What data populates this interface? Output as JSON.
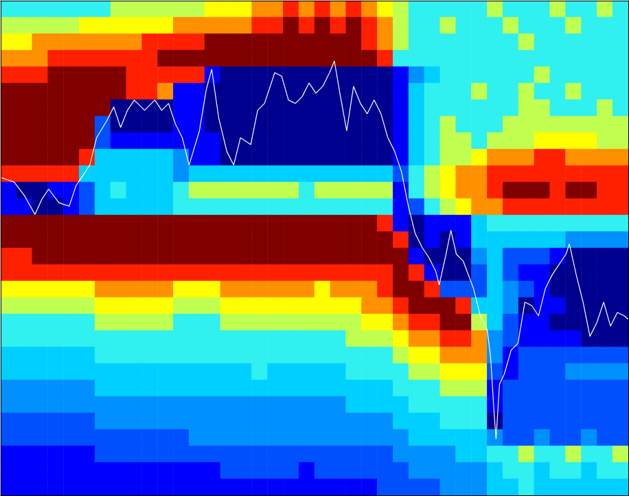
{
  "chart_data": {
    "type": "heatmap",
    "xlim": [
      0,
      916
    ],
    "ylim": [
      0,
      722
    ],
    "tick_labels": false,
    "grid": false,
    "color_range": [
      0,
      10
    ],
    "cells": [
      [
        5,
        5,
        5,
        5,
        5,
        5,
        5,
        6,
        6,
        6,
        6,
        6,
        6,
        7,
        7,
        7,
        8,
        8,
        9,
        8,
        9,
        8,
        9,
        8,
        7,
        6,
        5,
        5,
        5,
        5,
        5,
        6,
        5,
        5,
        5,
        6,
        5,
        5,
        6,
        5
      ],
      [
        6,
        6,
        6,
        6,
        6,
        7,
        7,
        7,
        7,
        7,
        7,
        8,
        8,
        8,
        8,
        8,
        9,
        9,
        10,
        9,
        10,
        9,
        10,
        9,
        8,
        6,
        5,
        5,
        6,
        5,
        5,
        5,
        6,
        5,
        5,
        5,
        6,
        5,
        5,
        5
      ],
      [
        7,
        7,
        8,
        8,
        8,
        8,
        8,
        8,
        8,
        9,
        9,
        9,
        9,
        10,
        10,
        10,
        10,
        10,
        10,
        10,
        10,
        10,
        10,
        9,
        8,
        6,
        5,
        5,
        5,
        5,
        5,
        5,
        5,
        6,
        5,
        5,
        5,
        5,
        5,
        5
      ],
      [
        8,
        8,
        8,
        9,
        9,
        9,
        9,
        9,
        9,
        9,
        10,
        10,
        10,
        10,
        10,
        10,
        10,
        10,
        10,
        10,
        10,
        10,
        10,
        10,
        9,
        5,
        5,
        5,
        5,
        5,
        5,
        5,
        5,
        5,
        5,
        5,
        5,
        5,
        5,
        5
      ],
      [
        9,
        9,
        9,
        10,
        10,
        10,
        10,
        10,
        9,
        9,
        9,
        9,
        9,
        1,
        0,
        0,
        0,
        0,
        0,
        0,
        0,
        0,
        0,
        0,
        0,
        1,
        3,
        4,
        5,
        5,
        5,
        5,
        5,
        5,
        6,
        5,
        5,
        5,
        5,
        5
      ],
      [
        10,
        10,
        10,
        10,
        10,
        10,
        10,
        10,
        9,
        9,
        8,
        1,
        1,
        0,
        0,
        0,
        0,
        0,
        0,
        0,
        0,
        0,
        0,
        0,
        0,
        1,
        4,
        5,
        5,
        5,
        6,
        5,
        5,
        6,
        5,
        5,
        6,
        5,
        5,
        5
      ],
      [
        10,
        10,
        10,
        10,
        10,
        10,
        10,
        0,
        0,
        0,
        0,
        1,
        1,
        0,
        0,
        0,
        0,
        0,
        0,
        0,
        0,
        0,
        0,
        0,
        0,
        1,
        4,
        5,
        5,
        5,
        5,
        5,
        5,
        6,
        6,
        5,
        5,
        5,
        6,
        5
      ],
      [
        10,
        10,
        10,
        10,
        10,
        10,
        2,
        0,
        0,
        0,
        0,
        1,
        1,
        0,
        0,
        0,
        0,
        0,
        0,
        0,
        0,
        0,
        0,
        0,
        0,
        1,
        4,
        5,
        6,
        5,
        5,
        5,
        6,
        6,
        6,
        6,
        6,
        6,
        6,
        6
      ],
      [
        10,
        10,
        10,
        10,
        10,
        10,
        2,
        1,
        1,
        1,
        1,
        1,
        1,
        1,
        0,
        0,
        0,
        0,
        0,
        0,
        0,
        0,
        0,
        0,
        0,
        1,
        4,
        5,
        6,
        6,
        5,
        6,
        6,
        6,
        7,
        7,
        7,
        7,
        6,
        6
      ],
      [
        10,
        10,
        10,
        10,
        10,
        9,
        4,
        4,
        4,
        4,
        4,
        3,
        1,
        1,
        0,
        0,
        0,
        0,
        0,
        0,
        0,
        0,
        0,
        0,
        0,
        1,
        4,
        5,
        6,
        6,
        7,
        8,
        8,
        8,
        9,
        9,
        8,
        8,
        8,
        8
      ],
      [
        9,
        9,
        9,
        9,
        9,
        4,
        4,
        4,
        4,
        4,
        4,
        3,
        4,
        4,
        4,
        4,
        4,
        4,
        4,
        4,
        4,
        4,
        4,
        4,
        4,
        2,
        5,
        6,
        7,
        8,
        8,
        9,
        9,
        9,
        9,
        9,
        9,
        9,
        9,
        9
      ],
      [
        1,
        0,
        0,
        1,
        1,
        2,
        4,
        5,
        4,
        4,
        4,
        5,
        6,
        6,
        6,
        6,
        6,
        6,
        6,
        5,
        6,
        6,
        6,
        6,
        6,
        1,
        5,
        6,
        7,
        8,
        8,
        9,
        10,
        10,
        10,
        9,
        10,
        10,
        9,
        9
      ],
      [
        1,
        1,
        0,
        0,
        1,
        2,
        4,
        4,
        4,
        4,
        4,
        5,
        5,
        5,
        5,
        5,
        5,
        5,
        5,
        5,
        5,
        5,
        5,
        5,
        5,
        1,
        2,
        5,
        6,
        7,
        8,
        8,
        9,
        9,
        9,
        9,
        9,
        9,
        9,
        9
      ],
      [
        10,
        10,
        10,
        10,
        10,
        10,
        10,
        10,
        10,
        10,
        10,
        10,
        10,
        10,
        10,
        10,
        10,
        10,
        10,
        10,
        10,
        10,
        10,
        10,
        9,
        1,
        0,
        1,
        1,
        1,
        4,
        5,
        5,
        5,
        5,
        5,
        5,
        5,
        5,
        5
      ],
      [
        10,
        10,
        10,
        10,
        10,
        10,
        10,
        10,
        10,
        10,
        10,
        10,
        10,
        10,
        10,
        10,
        10,
        10,
        10,
        10,
        10,
        10,
        10,
        10,
        10,
        9,
        0,
        1,
        0,
        1,
        4,
        4,
        4,
        4,
        4,
        4,
        3,
        3,
        3,
        3
      ],
      [
        9,
        9,
        10,
        10,
        10,
        10,
        10,
        10,
        10,
        10,
        10,
        10,
        10,
        10,
        10,
        10,
        10,
        10,
        10,
        10,
        10,
        10,
        10,
        10,
        10,
        10,
        1,
        0,
        0,
        0,
        3,
        4,
        2,
        2,
        2,
        1,
        0,
        0,
        0,
        0
      ],
      [
        9,
        9,
        9,
        9,
        9,
        9,
        9,
        9,
        9,
        9,
        9,
        9,
        9,
        9,
        9,
        9,
        9,
        9,
        9,
        9,
        9,
        9,
        9,
        9,
        9,
        10,
        9,
        1,
        0,
        0,
        2,
        4,
        2,
        1,
        1,
        0,
        0,
        0,
        0,
        0
      ],
      [
        7,
        7,
        7,
        7,
        7,
        7,
        8,
        8,
        8,
        8,
        8,
        7,
        7,
        7,
        8,
        8,
        8,
        8,
        8,
        8,
        7,
        8,
        8,
        8,
        9,
        10,
        10,
        9,
        2,
        2,
        2,
        4,
        3,
        2,
        1,
        0,
        0,
        0,
        0,
        0
      ],
      [
        6,
        6,
        6,
        6,
        6,
        6,
        7,
        7,
        7,
        7,
        7,
        6,
        6,
        6,
        7,
        7,
        7,
        7,
        7,
        7,
        7,
        7,
        7,
        8,
        8,
        9,
        10,
        10,
        10,
        9,
        4,
        4,
        3,
        0,
        1,
        1,
        0,
        0,
        0,
        0
      ],
      [
        5,
        5,
        5,
        5,
        5,
        5,
        6,
        6,
        6,
        6,
        6,
        5,
        5,
        5,
        6,
        6,
        6,
        6,
        6,
        6,
        6,
        6,
        6,
        7,
        7,
        8,
        9,
        9,
        10,
        10,
        6,
        4,
        2,
        1,
        1,
        0,
        0,
        0,
        0,
        0
      ],
      [
        5,
        5,
        5,
        5,
        5,
        5,
        5,
        5,
        5,
        5,
        5,
        5,
        5,
        5,
        5,
        5,
        5,
        5,
        5,
        5,
        5,
        5,
        6,
        6,
        6,
        7,
        8,
        8,
        9,
        9,
        8,
        3,
        2,
        1,
        1,
        1,
        1,
        0,
        0,
        0
      ],
      [
        4,
        4,
        4,
        4,
        4,
        4,
        5,
        5,
        5,
        5,
        5,
        5,
        5,
        5,
        5,
        5,
        5,
        5,
        5,
        5,
        5,
        5,
        5,
        5,
        5,
        6,
        7,
        7,
        8,
        8,
        8,
        3,
        1,
        2,
        2,
        2,
        2,
        2,
        2,
        2
      ],
      [
        4,
        4,
        4,
        4,
        4,
        4,
        4,
        4,
        4,
        4,
        4,
        4,
        4,
        4,
        4,
        4,
        5,
        4,
        4,
        4,
        4,
        4,
        5,
        5,
        5,
        5,
        6,
        6,
        7,
        7,
        7,
        2,
        1,
        2,
        2,
        2,
        3,
        3,
        3,
        3
      ],
      [
        3,
        3,
        3,
        3,
        3,
        3,
        4,
        4,
        4,
        4,
        4,
        4,
        4,
        4,
        4,
        4,
        4,
        4,
        4,
        4,
        4,
        4,
        4,
        4,
        4,
        5,
        5,
        5,
        6,
        6,
        6,
        1,
        2,
        2,
        2,
        2,
        2,
        2,
        2,
        2
      ],
      [
        3,
        3,
        3,
        3,
        3,
        3,
        3,
        3,
        3,
        3,
        3,
        3,
        3,
        3,
        3,
        3,
        3,
        3,
        3,
        3,
        3,
        3,
        4,
        4,
        4,
        4,
        5,
        5,
        5,
        5,
        5,
        1,
        2,
        2,
        2,
        2,
        2,
        2,
        2,
        2
      ],
      [
        2,
        2,
        2,
        2,
        2,
        2,
        3,
        3,
        3,
        3,
        3,
        3,
        3,
        3,
        3,
        3,
        3,
        3,
        3,
        3,
        3,
        3,
        3,
        3,
        3,
        4,
        4,
        4,
        5,
        5,
        5,
        0,
        2,
        2,
        2,
        2,
        2,
        2,
        2,
        2
      ],
      [
        2,
        2,
        2,
        2,
        2,
        2,
        2,
        2,
        2,
        2,
        2,
        2,
        3,
        3,
        3,
        3,
        3,
        3,
        3,
        3,
        3,
        3,
        3,
        3,
        3,
        3,
        4,
        4,
        4,
        4,
        4,
        3,
        2,
        2,
        3,
        2,
        2,
        3,
        2,
        2
      ],
      [
        1,
        1,
        1,
        1,
        1,
        1,
        2,
        2,
        2,
        2,
        2,
        2,
        2,
        2,
        2,
        2,
        2,
        2,
        2,
        2,
        2,
        2,
        2,
        2,
        2,
        3,
        3,
        3,
        3,
        4,
        4,
        5,
        5,
        6,
        5,
        5,
        6,
        5,
        5,
        6
      ],
      [
        1,
        1,
        1,
        1,
        1,
        1,
        1,
        1,
        1,
        1,
        1,
        1,
        1,
        1,
        2,
        2,
        2,
        2,
        2,
        1,
        2,
        2,
        2,
        2,
        2,
        2,
        3,
        3,
        3,
        3,
        3,
        4,
        5,
        5,
        4,
        5,
        5,
        4,
        5,
        5
      ],
      [
        1,
        1,
        1,
        1,
        1,
        1,
        1,
        1,
        1,
        1,
        1,
        1,
        1,
        1,
        1,
        1,
        1,
        1,
        1,
        1,
        1,
        1,
        1,
        1,
        2,
        2,
        2,
        2,
        3,
        3,
        3,
        4,
        4,
        5,
        4,
        4,
        4,
        4,
        4,
        4
      ]
    ],
    "series": [
      {
        "type": "line",
        "color": "#ffffff",
        "x": [
          0,
          20,
          35,
          50,
          60,
          70,
          85,
          100,
          110,
          120,
          130,
          140,
          155,
          165,
          175,
          185,
          195,
          210,
          225,
          235,
          245,
          255,
          265,
          275,
          290,
          300,
          308,
          318,
          330,
          340,
          350,
          365,
          375,
          385,
          400,
          410,
          420,
          430,
          440,
          450,
          460,
          470,
          480,
          487,
          495,
          505,
          515,
          525,
          535,
          545,
          555,
          565,
          575,
          585,
          595,
          605,
          615,
          625,
          635,
          640,
          650,
          657,
          665,
          675,
          690,
          700,
          710,
          715,
          720,
          723,
          728,
          735,
          745,
          755,
          765,
          775,
          785,
          795,
          805,
          815,
          825,
          830,
          840,
          850,
          860,
          870,
          880,
          890,
          900,
          910,
          916
        ],
        "y": [
          464,
          457,
          437,
          410,
          432,
          447,
          427,
          422,
          452,
          467,
          482,
          522,
          547,
          567,
          537,
          562,
          577,
          562,
          577,
          562,
          572,
          542,
          522,
          482,
          532,
          592,
          622,
          552,
          502,
          482,
          522,
          512,
          562,
          572,
          617,
          612,
          577,
          572,
          582,
          602,
          587,
          597,
          617,
          634,
          587,
          532,
          597,
          572,
          557,
          577,
          557,
          522,
          502,
          472,
          422,
          382,
          362,
          347,
          327,
          307,
          352,
          387,
          352,
          342,
          302,
          262,
          242,
          202,
          122,
          82,
          162,
          177,
          212,
          222,
          282,
          277,
          262,
          302,
          322,
          337,
          352,
          367,
          322,
          282,
          232,
          252,
          282,
          247,
          267,
          262,
          257
        ]
      }
    ]
  }
}
